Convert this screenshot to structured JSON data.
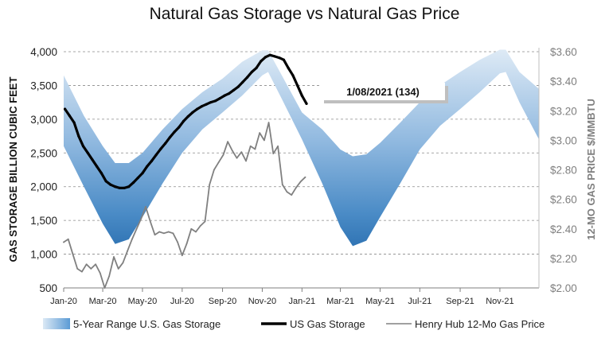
{
  "chart_data": {
    "type": "area",
    "title": "Natural Gas Storage vs Natural Gas Price",
    "ylabel": "GAS STORAGE BILLION CUBIC FEET",
    "y2label": "12-MO GAS PRICE $/MMBTU",
    "ylim": [
      500,
      4000
    ],
    "y2lim": [
      2.0,
      3.6
    ],
    "xlim": [
      "2020-01-01",
      "2021-12-31"
    ],
    "x_tick_labels": [
      "Jan-20",
      "Mar-20",
      "May-20",
      "Jul-20",
      "Sep-20",
      "Nov-20",
      "Jan-21",
      "Mar-21",
      "May-21",
      "Jul-21",
      "Sep-21",
      "Nov-21"
    ],
    "x_ticks": [
      "2020-01-01",
      "2020-03-01",
      "2020-05-01",
      "2020-07-01",
      "2020-09-01",
      "2020-11-01",
      "2021-01-01",
      "2021-03-01",
      "2021-05-01",
      "2021-07-01",
      "2021-09-01",
      "2021-11-01"
    ],
    "y_tick_labels": [
      "500",
      "1,000",
      "1,500",
      "2,000",
      "2,500",
      "3,000",
      "3,500",
      "4,000"
    ],
    "y_ticks": [
      500,
      1000,
      1500,
      2000,
      2500,
      3000,
      3500,
      4000
    ],
    "y2_tick_labels": [
      "$2.00",
      "$2.20",
      "$2.40",
      "$2.60",
      "$2.80",
      "$3.00",
      "$3.20",
      "$3.40",
      "$3.60"
    ],
    "y2_ticks": [
      2.0,
      2.2,
      2.4,
      2.6,
      2.8,
      3.0,
      3.2,
      3.4,
      3.6
    ],
    "annotation": {
      "text": "1/08/2021  (134)",
      "x": "2021-01-08",
      "y": 3230
    },
    "grid": "horizontal dashed",
    "legend_position": "bottom",
    "colors": {
      "range_light": "#d6e6f4",
      "range_dark": "#2e74b5",
      "storage": "#000000",
      "price": "#808080"
    },
    "series": [
      {
        "name": "5-Year Range U.S. Gas Storage",
        "kind": "band",
        "x": [
          "2020-01-01",
          "2020-02-01",
          "2020-03-01",
          "2020-03-20",
          "2020-04-10",
          "2020-05-01",
          "2020-06-01",
          "2020-07-01",
          "2020-08-01",
          "2020-09-01",
          "2020-10-01",
          "2020-11-01",
          "2020-11-10",
          "2020-12-01",
          "2021-01-01",
          "2021-02-01",
          "2021-03-01",
          "2021-03-20",
          "2021-04-10",
          "2021-05-01",
          "2021-06-01",
          "2021-07-01",
          "2021-08-01",
          "2021-09-01",
          "2021-10-01",
          "2021-11-01",
          "2021-11-10",
          "2021-12-01",
          "2021-12-31"
        ],
        "low": [
          2600,
          2000,
          1450,
          1150,
          1220,
          1550,
          2050,
          2500,
          2850,
          3100,
          3350,
          3650,
          3700,
          3300,
          2700,
          2050,
          1400,
          1120,
          1200,
          1550,
          2050,
          2550,
          2900,
          3150,
          3400,
          3680,
          3700,
          3250,
          2700
        ],
        "high": [
          3650,
          3050,
          2600,
          2350,
          2350,
          2500,
          2850,
          3150,
          3400,
          3600,
          3850,
          4020,
          4020,
          3650,
          3100,
          2850,
          2550,
          2450,
          2480,
          2650,
          2950,
          3250,
          3500,
          3700,
          3880,
          4030,
          4030,
          3700,
          3450
        ]
      },
      {
        "name": "US Gas Storage",
        "x": [
          "2020-01-03",
          "2020-01-10",
          "2020-01-17",
          "2020-01-24",
          "2020-01-31",
          "2020-02-07",
          "2020-02-14",
          "2020-02-21",
          "2020-02-28",
          "2020-03-06",
          "2020-03-13",
          "2020-03-20",
          "2020-03-27",
          "2020-04-03",
          "2020-04-10",
          "2020-04-17",
          "2020-04-24",
          "2020-05-01",
          "2020-05-08",
          "2020-05-15",
          "2020-05-22",
          "2020-05-29",
          "2020-06-05",
          "2020-06-12",
          "2020-06-19",
          "2020-06-26",
          "2020-07-03",
          "2020-07-10",
          "2020-07-17",
          "2020-07-24",
          "2020-07-31",
          "2020-08-07",
          "2020-08-14",
          "2020-08-21",
          "2020-08-28",
          "2020-09-04",
          "2020-09-11",
          "2020-09-18",
          "2020-09-25",
          "2020-10-02",
          "2020-10-09",
          "2020-10-16",
          "2020-10-23",
          "2020-10-30",
          "2020-11-06",
          "2020-11-13",
          "2020-11-20",
          "2020-11-27",
          "2020-12-04",
          "2020-12-11",
          "2020-12-18",
          "2020-12-25",
          "2021-01-01",
          "2021-01-08"
        ],
        "y": [
          3150,
          3050,
          2950,
          2750,
          2600,
          2500,
          2400,
          2300,
          2200,
          2080,
          2030,
          2000,
          1980,
          1980,
          2000,
          2060,
          2130,
          2200,
          2300,
          2380,
          2470,
          2560,
          2640,
          2730,
          2810,
          2880,
          2970,
          3040,
          3100,
          3150,
          3190,
          3220,
          3250,
          3270,
          3310,
          3350,
          3380,
          3430,
          3480,
          3550,
          3620,
          3700,
          3760,
          3860,
          3920,
          3950,
          3930,
          3910,
          3880,
          3760,
          3650,
          3500,
          3350,
          3230
        ]
      },
      {
        "name": "Henry Hub 12-Mo Gas Price",
        "axis": "right",
        "x": [
          "2020-01-01",
          "2020-01-08",
          "2020-01-15",
          "2020-01-22",
          "2020-01-29",
          "2020-02-05",
          "2020-02-12",
          "2020-02-19",
          "2020-02-26",
          "2020-03-04",
          "2020-03-11",
          "2020-03-18",
          "2020-03-25",
          "2020-04-01",
          "2020-04-08",
          "2020-04-15",
          "2020-04-22",
          "2020-04-29",
          "2020-05-06",
          "2020-05-13",
          "2020-05-20",
          "2020-05-27",
          "2020-06-03",
          "2020-06-10",
          "2020-06-17",
          "2020-06-24",
          "2020-07-01",
          "2020-07-08",
          "2020-07-15",
          "2020-07-22",
          "2020-07-29",
          "2020-08-05",
          "2020-08-12",
          "2020-08-19",
          "2020-08-26",
          "2020-09-02",
          "2020-09-09",
          "2020-09-16",
          "2020-09-23",
          "2020-09-30",
          "2020-10-07",
          "2020-10-14",
          "2020-10-21",
          "2020-10-28",
          "2020-11-04",
          "2020-11-11",
          "2020-11-18",
          "2020-11-25",
          "2020-12-02",
          "2020-12-09",
          "2020-12-16",
          "2020-12-23",
          "2020-12-30",
          "2021-01-06"
        ],
        "y": [
          2.31,
          2.33,
          2.23,
          2.13,
          2.11,
          2.16,
          2.13,
          2.16,
          2.1,
          2.0,
          2.08,
          2.21,
          2.13,
          2.17,
          2.25,
          2.33,
          2.4,
          2.47,
          2.55,
          2.45,
          2.36,
          2.38,
          2.37,
          2.38,
          2.37,
          2.31,
          2.22,
          2.3,
          2.4,
          2.38,
          2.42,
          2.45,
          2.7,
          2.8,
          2.85,
          2.9,
          2.99,
          2.93,
          2.88,
          2.92,
          2.86,
          2.96,
          2.94,
          3.05,
          3.0,
          3.12,
          2.91,
          2.96,
          2.7,
          2.65,
          2.63,
          2.68,
          2.72,
          2.75
        ]
      }
    ]
  }
}
